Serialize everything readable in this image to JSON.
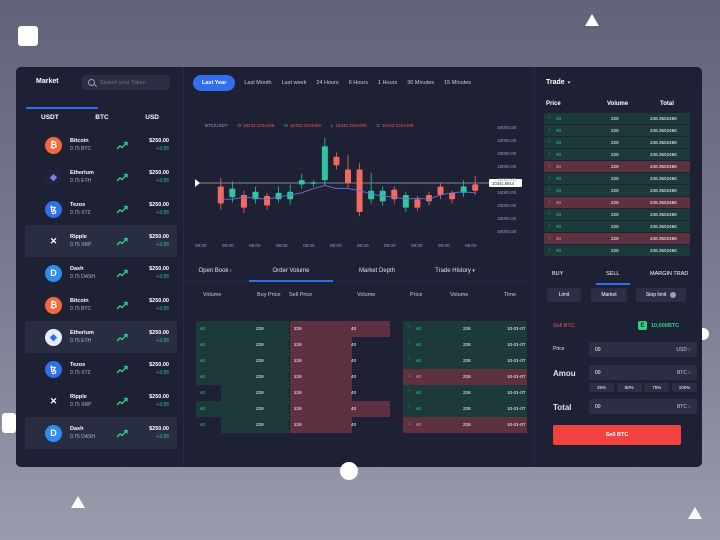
{
  "left": {
    "title": "Market",
    "search_placeholder": "Search your Token",
    "tabs": [
      "USDT",
      "BTC",
      "USD"
    ],
    "coins": [
      {
        "name": "Bitcoin",
        "amount": "0.75 BTC",
        "price": "$250.00",
        "change": "+3.95",
        "icon": "bitcoin-icon",
        "color": "#f06a3b",
        "glyph": "₿",
        "highlight": false
      },
      {
        "name": "Etherium",
        "amount": "0.75 ETH",
        "price": "$250.00",
        "change": "+3.95",
        "icon": "ethereum-icon",
        "color": "#1f2340",
        "glyph": "◆",
        "highlight": false
      },
      {
        "name": "Tezos",
        "amount": "0.75 XTZ",
        "price": "$250.00",
        "change": "+3.95",
        "icon": "tezos-icon",
        "color": "#2f6ff0",
        "glyph": "ꜩ",
        "highlight": false
      },
      {
        "name": "Ripple",
        "amount": "0.75 XRP",
        "price": "$250.00",
        "change": "+3.95",
        "icon": "ripple-icon",
        "color": "#282d42",
        "glyph": "✕",
        "highlight": true
      },
      {
        "name": "Dash",
        "amount": "0.75 DASH",
        "price": "$250.00",
        "change": "+3.95",
        "icon": "dash-icon",
        "color": "#2f8df0",
        "glyph": "D",
        "highlight": false
      },
      {
        "name": "Bitcoin",
        "amount": "0.75 BTC",
        "price": "$250.00",
        "change": "+3.95",
        "icon": "bitcoin-icon",
        "color": "#f06a3b",
        "glyph": "₿",
        "highlight": false
      },
      {
        "name": "Etherium",
        "amount": "0.75 ETH",
        "price": "$250.00",
        "change": "+3.95",
        "icon": "ethereum-icon",
        "color": "#e9edf7",
        "glyph": "◆",
        "highlight": true
      },
      {
        "name": "Tezos",
        "amount": "0.75 XTZ",
        "price": "$250.00",
        "change": "+3.95",
        "icon": "tezos-icon",
        "color": "#2f6ff0",
        "glyph": "ꜩ",
        "highlight": false
      },
      {
        "name": "Ripple",
        "amount": "0.75 XRP",
        "price": "$250.00",
        "change": "+3.95",
        "icon": "ripple-icon",
        "color": "#1d2133",
        "glyph": "✕",
        "highlight": false
      },
      {
        "name": "Dash",
        "amount": "0.75 DASH",
        "price": "$250.00",
        "change": "+3.95",
        "icon": "dash-icon",
        "color": "#2f8df0",
        "glyph": "D",
        "highlight": true
      }
    ]
  },
  "time_tabs": [
    "Last Year",
    "Last Month",
    "Last week",
    "24 Hours",
    "6 Hours",
    "1 Hours",
    "30 Minutes",
    "15 Minutes"
  ],
  "chart": {
    "pair": "BTC/USDT",
    "ohlc": [
      {
        "k": "O",
        "v": "18432.2204498"
      },
      {
        "k": "H",
        "v": "18432.2204498"
      },
      {
        "k": "L",
        "v": "18432.2204498"
      },
      {
        "k": "C",
        "v": "18432.2204498"
      }
    ],
    "current_price_label": "10341.8914"
  },
  "chart_data": {
    "type": "candlestick",
    "y_ticks": [
      "19000.00",
      "19000.00",
      "19000.00",
      "19000.00",
      "19000.00",
      "19000.00",
      "19000.00",
      "19000.00",
      "19000.00"
    ],
    "x_ticks": [
      "09:00",
      "09:00",
      "09:00",
      "09:00",
      "09:00",
      "09:00",
      "09:00",
      "09:00",
      "09:00",
      "09:00",
      "09:00"
    ],
    "candles": [
      {
        "o": 0.26,
        "c": 0.42,
        "h": 0.5,
        "l": 0.2,
        "up": false
      },
      {
        "o": 0.4,
        "c": 0.32,
        "h": 0.47,
        "l": 0.27,
        "up": true
      },
      {
        "o": 0.34,
        "c": 0.22,
        "h": 0.38,
        "l": 0.17,
        "up": false
      },
      {
        "o": 0.3,
        "c": 0.37,
        "h": 0.42,
        "l": 0.26,
        "up": true
      },
      {
        "o": 0.33,
        "c": 0.24,
        "h": 0.36,
        "l": 0.2,
        "up": false
      },
      {
        "o": 0.36,
        "c": 0.3,
        "h": 0.42,
        "l": 0.27,
        "up": true
      },
      {
        "o": 0.3,
        "c": 0.37,
        "h": 0.44,
        "l": 0.25,
        "up": true
      },
      {
        "o": 0.44,
        "c": 0.48,
        "h": 0.54,
        "l": 0.4,
        "up": true
      },
      {
        "o": 0.46,
        "c": 0.45,
        "h": 0.48,
        "l": 0.42,
        "up": true
      },
      {
        "o": 0.48,
        "c": 0.8,
        "h": 0.88,
        "l": 0.43,
        "up": true
      },
      {
        "o": 0.7,
        "c": 0.62,
        "h": 0.74,
        "l": 0.58,
        "up": false
      },
      {
        "o": 0.58,
        "c": 0.45,
        "h": 0.72,
        "l": 0.4,
        "up": false
      },
      {
        "o": 0.58,
        "c": 0.18,
        "h": 0.64,
        "l": 0.14,
        "up": false
      },
      {
        "o": 0.38,
        "c": 0.3,
        "h": 0.55,
        "l": 0.26,
        "up": true
      },
      {
        "o": 0.38,
        "c": 0.28,
        "h": 0.42,
        "l": 0.24,
        "up": true
      },
      {
        "o": 0.39,
        "c": 0.3,
        "h": 0.42,
        "l": 0.26,
        "up": false
      },
      {
        "o": 0.34,
        "c": 0.22,
        "h": 0.37,
        "l": 0.18,
        "up": true
      },
      {
        "o": 0.3,
        "c": 0.22,
        "h": 0.33,
        "l": 0.19,
        "up": false
      },
      {
        "o": 0.28,
        "c": 0.34,
        "h": 0.37,
        "l": 0.24,
        "up": false
      },
      {
        "o": 0.34,
        "c": 0.42,
        "h": 0.45,
        "l": 0.3,
        "up": false
      },
      {
        "o": 0.3,
        "c": 0.36,
        "h": 0.38,
        "l": 0.26,
        "up": false
      },
      {
        "o": 0.36,
        "c": 0.42,
        "h": 0.48,
        "l": 0.32,
        "up": true
      },
      {
        "o": 0.38,
        "c": 0.44,
        "h": 0.52,
        "l": 0.34,
        "up": false
      }
    ],
    "ma_line": [
      0.3,
      0.3,
      0.32,
      0.31,
      0.3,
      0.32,
      0.34,
      0.36,
      0.4,
      0.43,
      0.4,
      0.4,
      0.38,
      0.35,
      0.33,
      0.32,
      0.3,
      0.31,
      0.3,
      0.34,
      0.36,
      0.37,
      0.36
    ]
  },
  "mid_tabs": [
    "Open Book",
    "Order Volume",
    "Market Depth",
    "Trade History"
  ],
  "col_heads": [
    "Volume",
    "Buy Price",
    "Sell Price",
    "Volume",
    "Price",
    "Volume",
    "Time"
  ],
  "depth_rows": [
    {
      "v1": "40",
      "p1": "226",
      "p2": "226",
      "v2": "40",
      "gw": 93,
      "rw": 100
    },
    {
      "v1": "40",
      "p1": "226",
      "p2": "226",
      "v2": "40",
      "gw": 93,
      "rw": 62
    },
    {
      "v1": "40",
      "p1": "226",
      "p2": "226",
      "v2": "40",
      "gw": 93,
      "rw": 62
    },
    {
      "v1": "40",
      "p1": "226",
      "p2": "226",
      "v2": "40",
      "gw": 93,
      "rw": 62
    },
    {
      "v1": "40",
      "p1": "226",
      "p2": "226",
      "v2": "40",
      "gw": 68,
      "rw": 62
    },
    {
      "v1": "40",
      "p1": "226",
      "p2": "226",
      "v2": "40",
      "gw": 93,
      "rw": 100
    },
    {
      "v1": "40",
      "p1": "226",
      "p2": "226",
      "v2": "40",
      "gw": 68,
      "rw": 62
    }
  ],
  "history_rows": [
    {
      "dir": "up",
      "p": "40",
      "v": "226",
      "t": "10-01-07"
    },
    {
      "dir": "up",
      "p": "40",
      "v": "226",
      "t": "10-01-07"
    },
    {
      "dir": "up",
      "p": "40",
      "v": "226",
      "t": "10-01-07"
    },
    {
      "dir": "dn",
      "p": "40",
      "v": "226",
      "t": "10-01-07"
    },
    {
      "dir": "up",
      "p": "40",
      "v": "226",
      "t": "10-01-07"
    },
    {
      "dir": "up",
      "p": "40",
      "v": "226",
      "t": "10-01-07"
    },
    {
      "dir": "dn",
      "p": "40",
      "v": "226",
      "t": "10-01-07"
    }
  ],
  "right": {
    "title": "Trade",
    "heads": [
      "Price",
      "Volume",
      "Total"
    ],
    "rows": [
      {
        "dir": "up",
        "p": "40",
        "v": "226",
        "t": "248.3502486"
      },
      {
        "dir": "up",
        "p": "40",
        "v": "226",
        "t": "248.3502486"
      },
      {
        "dir": "up",
        "p": "40",
        "v": "226",
        "t": "248.3502486"
      },
      {
        "dir": "up",
        "p": "40",
        "v": "226",
        "t": "248.3502486"
      },
      {
        "dir": "dn",
        "p": "40",
        "v": "226",
        "t": "248.3502486"
      },
      {
        "dir": "up",
        "p": "40",
        "v": "226",
        "t": "248.3502486"
      },
      {
        "dir": "up",
        "p": "40",
        "v": "226",
        "t": "248.3502486"
      },
      {
        "dir": "dn",
        "p": "40",
        "v": "226",
        "t": "248.3502486"
      },
      {
        "dir": "up",
        "p": "40",
        "v": "226",
        "t": "248.3502486"
      },
      {
        "dir": "up",
        "p": "40",
        "v": "226",
        "t": "248.3502486"
      },
      {
        "dir": "dn",
        "p": "40",
        "v": "226",
        "t": "248.3502486"
      },
      {
        "dir": "up",
        "p": "40",
        "v": "226",
        "t": "248.3502486"
      }
    ],
    "bs_tabs": [
      "BUY",
      "SELL",
      "MARGIN TRAD"
    ],
    "order_types": [
      "Limit",
      "Market",
      "Stop limit"
    ],
    "sell_label": "Sell BTC",
    "balance": "10,000BTC",
    "fields": [
      {
        "label": "Price",
        "value": "00",
        "unit": "USD"
      },
      {
        "label": "Amou",
        "value": "00",
        "unit": "BTC"
      },
      {
        "label": "Total",
        "value": "00",
        "unit": "BTC"
      }
    ],
    "pcts": [
      "25%",
      "50%",
      "75%",
      "100%"
    ],
    "sell_button": "Sell BTC"
  },
  "colors": {
    "accent": "#2f6ff0",
    "up": "#2fd37f",
    "down": "#f0515a"
  }
}
